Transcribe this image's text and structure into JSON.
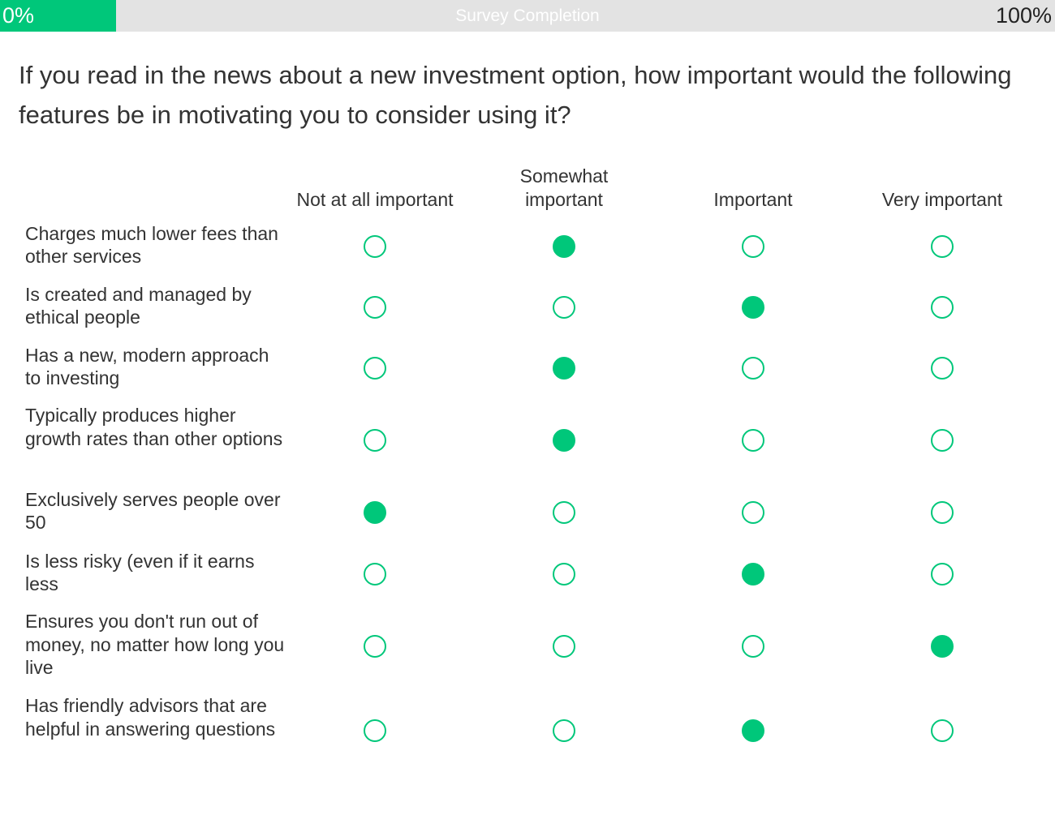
{
  "progress": {
    "label": "Survey Completion",
    "start_label": "0%",
    "end_label": "100%",
    "percent": 11
  },
  "question": "If you read in the news about a new investment option, how important would the following features be in motivating you to consider using it?",
  "columns": [
    "Not at all important",
    "Somewhat important",
    "Important",
    "Very important"
  ],
  "rows": [
    {
      "label": "Charges much lower fees than other services",
      "selected": "Somewhat important"
    },
    {
      "label": "Is created and managed by ethical people",
      "selected": "Important"
    },
    {
      "label": "Has a new, modern approach to investing",
      "selected": "Somewhat important"
    },
    {
      "label": "Typically produces higher growth rates than other options",
      "selected": "Somewhat important"
    },
    {
      "label": "Exclusively serves people over 50",
      "selected": "Not at all important"
    },
    {
      "label": "Is less risky (even if it earns less",
      "selected": "Important"
    },
    {
      "label": "Ensures you don't run out of money, no matter how long you live",
      "selected": "Very important"
    },
    {
      "label": "Has friendly advisors that are helpful in answering questions",
      "selected": "Important"
    }
  ],
  "colors": {
    "accent": "#00c77a",
    "track": "#e3e3e3"
  }
}
